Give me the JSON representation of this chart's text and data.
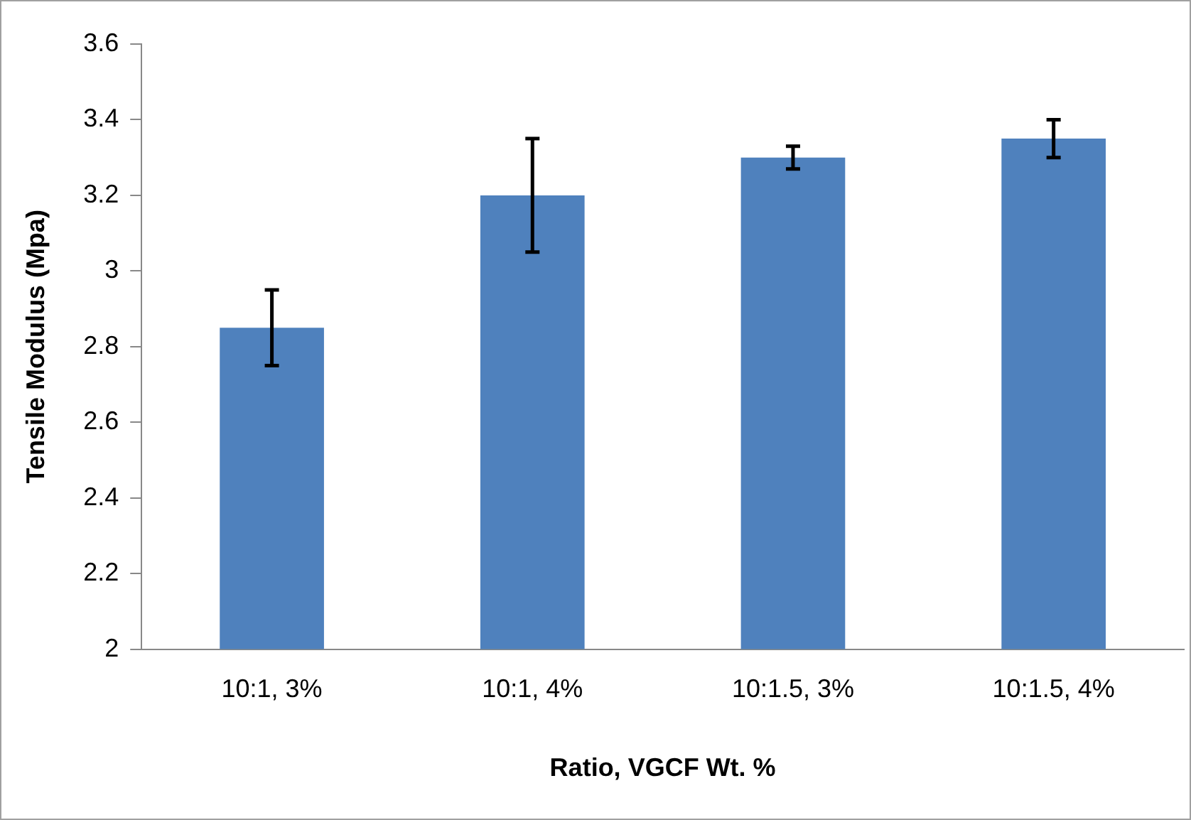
{
  "chart_data": {
    "type": "bar",
    "xlabel": "Ratio, VGCF Wt. %",
    "ylabel": "Tensile Modulus (Mpa)",
    "categories": [
      "10:1, 3%",
      "10:1, 4%",
      "10:1.5, 3%",
      "10:1.5, 4%"
    ],
    "values": [
      2.85,
      3.2,
      3.3,
      3.35
    ],
    "errors": [
      0.1,
      0.15,
      0.03,
      0.05
    ],
    "color": "#4f81bd",
    "ylim": [
      2,
      3.6
    ],
    "yticks": [
      2,
      2.2,
      2.4,
      2.6,
      2.8,
      3,
      3.2,
      3.4,
      3.6
    ],
    "grid": false,
    "legend": false
  }
}
